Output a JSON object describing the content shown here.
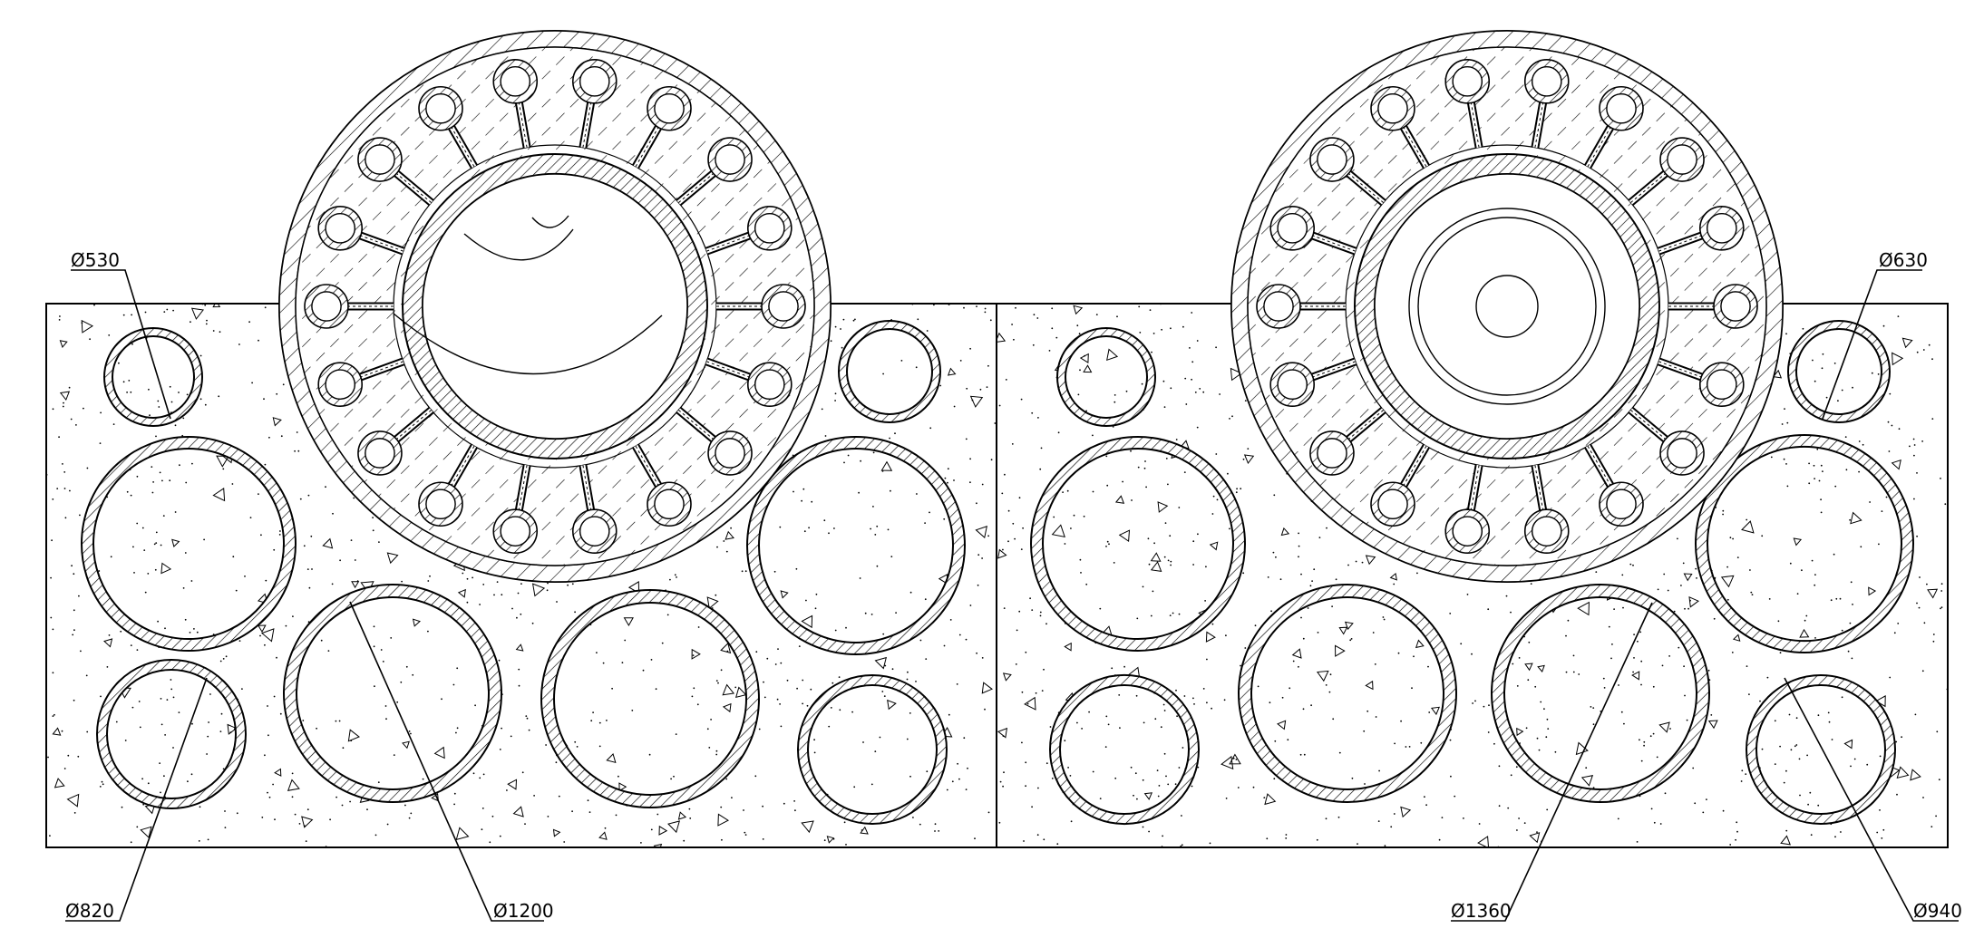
{
  "dimensions": {
    "d530": "Ø530",
    "d630": "Ø630",
    "d820": "Ø820",
    "d1200": "Ø1200",
    "d1360": "Ø1360",
    "d940": "Ø940"
  },
  "colors": {
    "line": "#000000",
    "background": "#ffffff"
  }
}
